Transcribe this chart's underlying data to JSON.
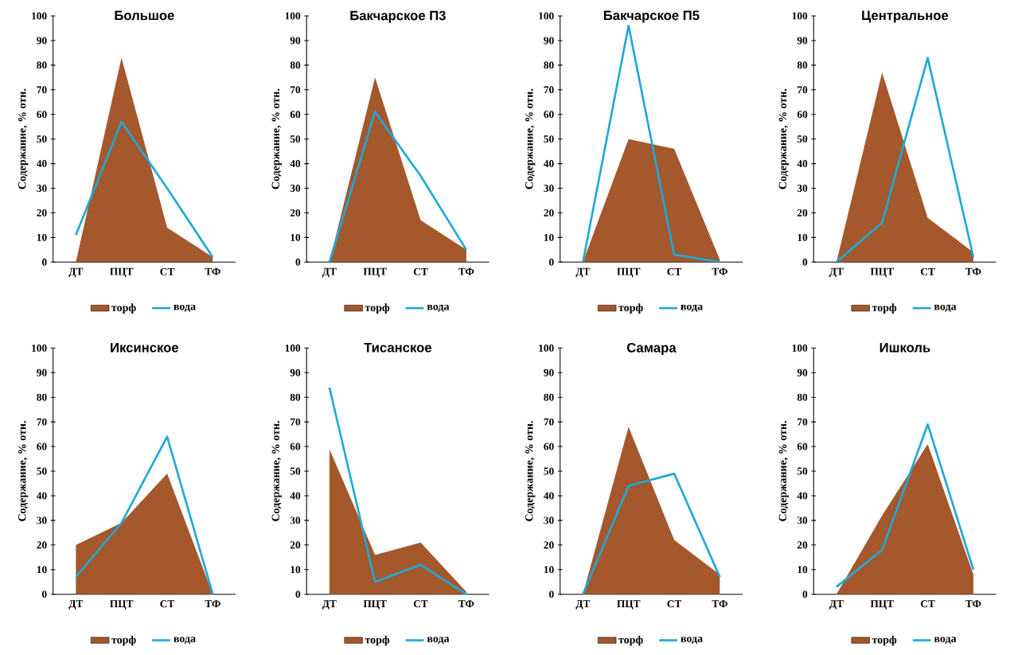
{
  "chart_data": [
    {
      "type": "area",
      "title": "Большое",
      "ylabel": "Содержание,  % отн.",
      "categories": [
        "ДТ",
        "ПЦТ",
        "СТ",
        "ТФ"
      ],
      "ylim": [
        0,
        100
      ],
      "yticks": [
        0,
        10,
        20,
        30,
        40,
        50,
        60,
        70,
        80,
        90,
        100
      ],
      "legend": "bottom",
      "series": [
        {
          "name": "торф",
          "type": "area",
          "color": "#a4582c",
          "values": [
            0,
            83,
            14,
            2
          ]
        },
        {
          "name": "вода",
          "type": "line",
          "color": "#1fa9d9",
          "values": [
            11,
            57,
            30,
            2
          ]
        }
      ]
    },
    {
      "type": "area",
      "title": "Бакчарское П3",
      "ylabel": "Содержание,  % отн.",
      "categories": [
        "ДТ",
        "ПЦТ",
        "СТ",
        "ТФ"
      ],
      "ylim": [
        0,
        100
      ],
      "yticks": [
        0,
        10,
        20,
        30,
        40,
        50,
        60,
        70,
        80,
        90,
        100
      ],
      "legend": "bottom",
      "series": [
        {
          "name": "торф",
          "type": "area",
          "color": "#a4582c",
          "values": [
            0,
            75,
            17,
            5
          ]
        },
        {
          "name": "вода",
          "type": "line",
          "color": "#1fa9d9",
          "values": [
            0,
            61,
            35,
            5
          ]
        }
      ]
    },
    {
      "type": "area",
      "title": "Бакчарское П5",
      "ylabel": "Содержание,  % отн.",
      "categories": [
        "ДТ",
        "ПЦТ",
        "СТ",
        "ТФ"
      ],
      "ylim": [
        0,
        100
      ],
      "yticks": [
        0,
        10,
        20,
        30,
        40,
        50,
        60,
        70,
        80,
        90,
        100
      ],
      "legend": "bottom",
      "series": [
        {
          "name": "торф",
          "type": "area",
          "color": "#a4582c",
          "values": [
            0,
            50,
            46,
            1
          ]
        },
        {
          "name": "вода",
          "type": "line",
          "color": "#1fa9d9",
          "values": [
            0,
            96,
            3,
            0
          ]
        }
      ]
    },
    {
      "type": "area",
      "title": "Центральное",
      "ylabel": "Содержание,  % отн.",
      "categories": [
        "ДТ",
        "ПЦТ",
        "СТ",
        "ТФ"
      ],
      "ylim": [
        0,
        100
      ],
      "yticks": [
        0,
        10,
        20,
        30,
        40,
        50,
        60,
        70,
        80,
        90,
        100
      ],
      "legend": "bottom",
      "series": [
        {
          "name": "торф",
          "type": "area",
          "color": "#a4582c",
          "values": [
            0,
            77,
            18,
            4
          ]
        },
        {
          "name": "вода",
          "type": "line",
          "color": "#1fa9d9",
          "values": [
            0,
            16,
            83,
            2
          ]
        }
      ]
    },
    {
      "type": "area",
      "title": "Иксинское",
      "ylabel": "Содержание,  % отн.",
      "categories": [
        "ДТ",
        "ПЦТ",
        "СТ",
        "ТФ"
      ],
      "ylim": [
        0,
        100
      ],
      "yticks": [
        0,
        10,
        20,
        30,
        40,
        50,
        60,
        70,
        80,
        90,
        100
      ],
      "legend": "bottom",
      "series": [
        {
          "name": "торф",
          "type": "area",
          "color": "#a4582c",
          "values": [
            20,
            29,
            49,
            0
          ]
        },
        {
          "name": "вода",
          "type": "line",
          "color": "#1fa9d9",
          "values": [
            7,
            29,
            64,
            0
          ]
        }
      ]
    },
    {
      "type": "area",
      "title": "Тисанское",
      "ylabel": "Содержание,  % отн.",
      "categories": [
        "ДТ",
        "ПЦТ",
        "СТ",
        "ТФ"
      ],
      "ylim": [
        0,
        100
      ],
      "yticks": [
        0,
        10,
        20,
        30,
        40,
        50,
        60,
        70,
        80,
        90,
        100
      ],
      "legend": "bottom",
      "series": [
        {
          "name": "торф",
          "type": "area",
          "color": "#a4582c",
          "values": [
            59,
            16,
            21,
            1
          ]
        },
        {
          "name": "вода",
          "type": "line",
          "color": "#1fa9d9",
          "values": [
            84,
            5,
            12,
            0
          ]
        }
      ]
    },
    {
      "type": "area",
      "title": "Самара",
      "ylabel": "Содержание,  % отн.",
      "categories": [
        "ДТ",
        "ПЦТ",
        "СТ",
        "ТФ"
      ],
      "ylim": [
        0,
        100
      ],
      "yticks": [
        0,
        10,
        20,
        30,
        40,
        50,
        60,
        70,
        80,
        90,
        100
      ],
      "legend": "bottom",
      "series": [
        {
          "name": "торф",
          "type": "area",
          "color": "#a4582c",
          "values": [
            0,
            68,
            22,
            8
          ]
        },
        {
          "name": "вода",
          "type": "line",
          "color": "#1fa9d9",
          "values": [
            0,
            44,
            49,
            7
          ]
        }
      ]
    },
    {
      "type": "area",
      "title": "Ишколь",
      "ylabel": "Содержание,  % отн.",
      "categories": [
        "ДТ",
        "ПЦТ",
        "СТ",
        "ТФ"
      ],
      "ylim": [
        0,
        100
      ],
      "yticks": [
        0,
        10,
        20,
        30,
        40,
        50,
        60,
        70,
        80,
        90,
        100
      ],
      "legend": "bottom",
      "series": [
        {
          "name": "торф",
          "type": "area",
          "color": "#a4582c",
          "values": [
            0,
            32,
            61,
            8
          ]
        },
        {
          "name": "вода",
          "type": "line",
          "color": "#1fa9d9",
          "values": [
            3,
            18,
            69,
            10
          ]
        }
      ]
    }
  ]
}
